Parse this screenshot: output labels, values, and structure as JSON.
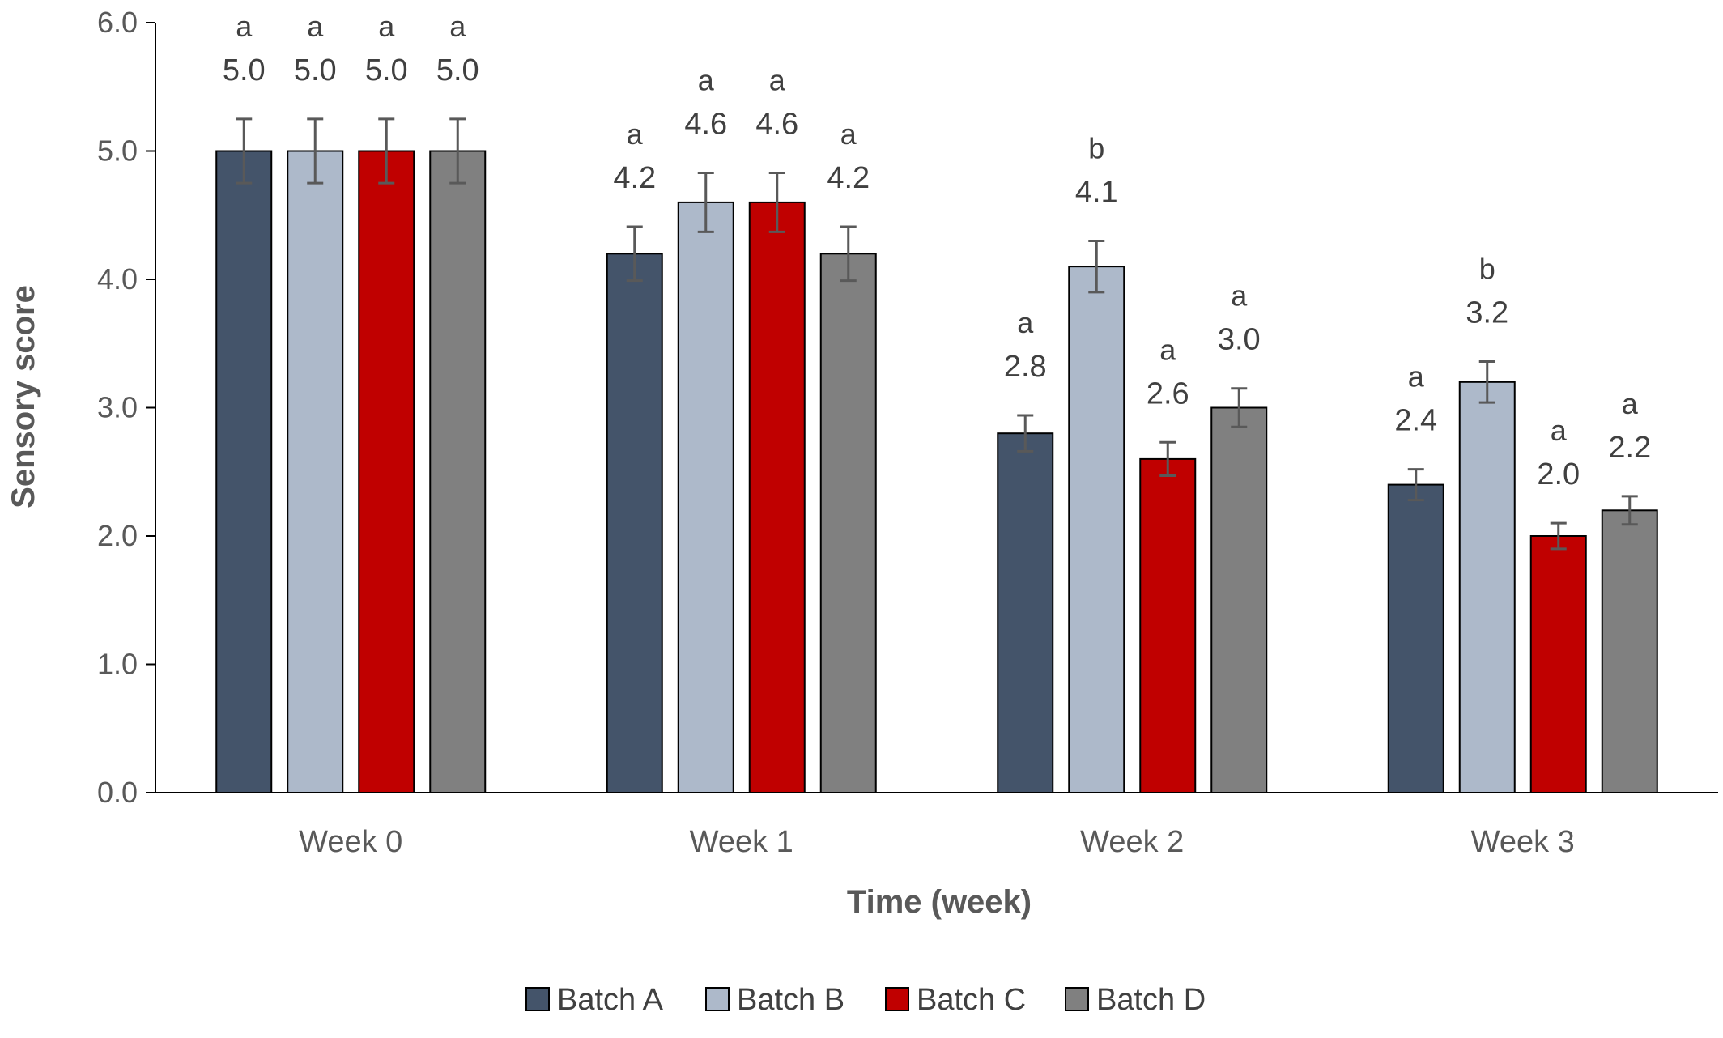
{
  "chart_data": {
    "type": "bar",
    "title": "",
    "xlabel": "Time (week)",
    "ylabel": "Sensory score",
    "ylim": [
      0,
      6
    ],
    "yticks": [
      "0.0",
      "1.0",
      "2.0",
      "3.0",
      "4.0",
      "5.0",
      "6.0"
    ],
    "categories": [
      "Week 0",
      "Week 1",
      "Week 2",
      "Week 3"
    ],
    "legend_position": "bottom",
    "grid": false,
    "series": [
      {
        "name": "Batch A",
        "color": "#44546A",
        "values": [
          5.0,
          4.2,
          2.8,
          2.4
        ],
        "value_labels": [
          "5.0",
          "4.2",
          "2.8",
          "2.4"
        ],
        "errors": [
          0.25,
          0.21,
          0.14,
          0.12
        ],
        "significance": [
          "a",
          "a",
          "a",
          "a"
        ]
      },
      {
        "name": "Batch B",
        "color": "#ADB9CA",
        "values": [
          5.0,
          4.6,
          4.1,
          3.2
        ],
        "value_labels": [
          "5.0",
          "4.6",
          "4.1",
          "3.2"
        ],
        "errors": [
          0.25,
          0.23,
          0.2,
          0.16
        ],
        "significance": [
          "a",
          "a",
          "b",
          "b"
        ]
      },
      {
        "name": "Batch C",
        "color": "#C00000",
        "values": [
          5.0,
          4.6,
          2.6,
          2.0
        ],
        "value_labels": [
          "5.0",
          "4.6",
          "2.6",
          "2.0"
        ],
        "errors": [
          0.25,
          0.23,
          0.13,
          0.1
        ],
        "significance": [
          "a",
          "a",
          "a",
          "a"
        ]
      },
      {
        "name": "Batch D",
        "color": "#808080",
        "values": [
          5.0,
          4.2,
          3.0,
          2.2
        ],
        "value_labels": [
          "5.0",
          "4.2",
          "3.0",
          "2.2"
        ],
        "errors": [
          0.25,
          0.21,
          0.15,
          0.11
        ],
        "significance": [
          "a",
          "a",
          "a",
          "a"
        ]
      }
    ]
  }
}
